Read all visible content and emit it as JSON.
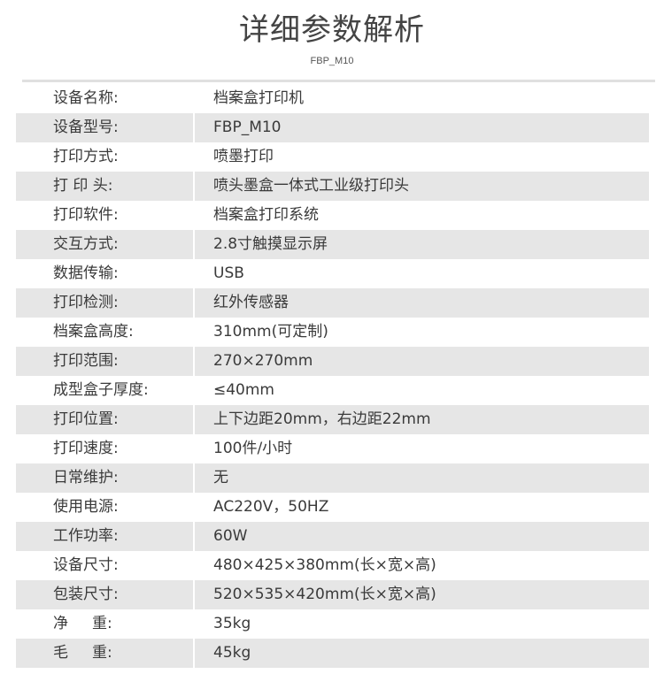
{
  "header": {
    "title": "详细参数解析",
    "subtitle": "FBP_M10"
  },
  "specs": [
    {
      "label": "设备名称:",
      "value": "档案盒打印机"
    },
    {
      "label": "设备型号:",
      "value": "FBP_M10"
    },
    {
      "label": "打印方式:",
      "value": "喷墨打印"
    },
    {
      "label": "打 印 头:",
      "value": "喷头墨盒一体式工业级打印头"
    },
    {
      "label": "打印软件:",
      "value": "档案盒打印系统"
    },
    {
      "label": "交互方式:",
      "value": "2.8寸触摸显示屏"
    },
    {
      "label": "数据传输:",
      "value": "USB"
    },
    {
      "label": "打印检测:",
      "value": "红外传感器"
    },
    {
      "label": "档案盒高度:",
      "value": "310mm(可定制)"
    },
    {
      "label": "打印范围:",
      "value": "270×270mm"
    },
    {
      "label": "成型盒子厚度:",
      "value": "≤40mm"
    },
    {
      "label": "打印位置:",
      "value": "上下边距20mm，右边距22mm"
    },
    {
      "label": "打印速度:",
      "value": "100件/小时"
    },
    {
      "label": "日常维护:",
      "value": "无"
    },
    {
      "label": "使用电源:",
      "value": "AC220V，50HZ"
    },
    {
      "label": "工作功率:",
      "value": "60W"
    },
    {
      "label": "设备尺寸:",
      "value": "480×425×380mm(长×宽×高)"
    },
    {
      "label": "包装尺寸:",
      "value": "520×535×420mm(长×宽×高)"
    },
    {
      "label": "净     重:",
      "value": "35kg"
    },
    {
      "label": "毛     重:",
      "value": "45kg"
    }
  ]
}
